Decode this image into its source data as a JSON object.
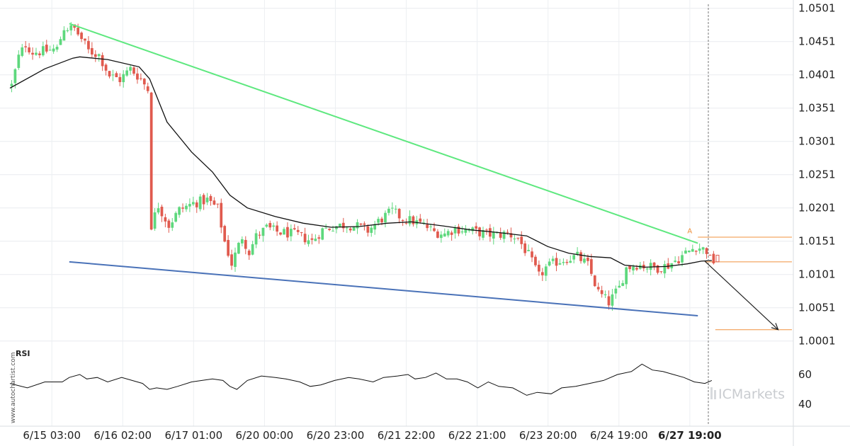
{
  "chart_data": {
    "type": "candlestick",
    "y_axis": {
      "range": [
        0.9976,
        1.0506
      ],
      "ticks": [
        "1.0501",
        "1.0451",
        "1.0401",
        "1.0351",
        "1.0301",
        "1.0251",
        "1.0201",
        "1.0151",
        "1.0101",
        "1.0051",
        "1.0001"
      ]
    },
    "x_axis": {
      "ticks": [
        "6/15 03:00",
        "6/16 02:00",
        "6/17 01:00",
        "6/20 00:00",
        "6/20 23:00",
        "6/21 22:00",
        "6/22 21:00",
        "6/23 20:00",
        "6/24 19:00",
        "6/27 19:00"
      ],
      "current_label": "6/27 19:00",
      "bar_count": 170
    },
    "price_path": [
      [
        0,
        1.0385
      ],
      [
        2,
        1.0428
      ],
      [
        4,
        1.0447
      ],
      [
        6,
        1.0435
      ],
      [
        10,
        1.0437
      ],
      [
        13,
        1.044
      ],
      [
        15,
        1.0472
      ],
      [
        18,
        1.047
      ],
      [
        20,
        1.0455
      ],
      [
        22,
        1.0437
      ],
      [
        25,
        1.0431
      ],
      [
        28,
        1.04
      ],
      [
        31,
        1.0394
      ],
      [
        34,
        1.041
      ],
      [
        37,
        1.0395
      ],
      [
        39,
        1.0379
      ],
      [
        40,
        1.0175
      ],
      [
        42,
        1.0205
      ],
      [
        45,
        1.0175
      ],
      [
        48,
        1.0198
      ],
      [
        52,
        1.0208
      ],
      [
        56,
        1.0213
      ],
      [
        59,
        1.02
      ],
      [
        61,
        1.015
      ],
      [
        63,
        1.0117
      ],
      [
        66,
        1.0158
      ],
      [
        68,
        1.0135
      ],
      [
        70,
        1.0158
      ],
      [
        73,
        1.0171
      ],
      [
        76,
        1.0165
      ],
      [
        79,
        1.0163
      ],
      [
        82,
        1.016
      ],
      [
        86,
        1.0151
      ],
      [
        89,
        1.0168
      ],
      [
        92,
        1.0173
      ],
      [
        96,
        1.0176
      ],
      [
        99,
        1.0173
      ],
      [
        102,
        1.0167
      ],
      [
        106,
        1.0185
      ],
      [
        109,
        1.0196
      ],
      [
        112,
        1.0185
      ],
      [
        115,
        1.0181
      ],
      [
        118,
        1.0175
      ],
      [
        121,
        1.0165
      ],
      [
        124,
        1.0162
      ],
      [
        127,
        1.017
      ],
      [
        130,
        1.0168
      ],
      [
        133,
        1.0165
      ],
      [
        136,
        1.0162
      ],
      [
        139,
        1.016
      ],
      [
        142,
        1.0163
      ],
      [
        145,
        1.0155
      ],
      [
        148,
        1.013
      ],
      [
        151,
        1.0098
      ],
      [
        153,
        1.0111
      ],
      [
        156,
        1.012
      ],
      [
        159,
        1.0125
      ],
      [
        162,
        1.0128
      ],
      [
        165,
        1.0115
      ],
      [
        168,
        1.0074
      ],
      [
        171,
        1.0059
      ],
      [
        174,
        1.0081
      ],
      [
        176,
        1.0111
      ],
      [
        179,
        1.0116
      ],
      [
        182,
        1.0113
      ],
      [
        185,
        1.0111
      ],
      [
        188,
        1.0115
      ],
      [
        191,
        1.0125
      ],
      [
        193,
        1.0133
      ],
      [
        196,
        1.0143
      ],
      [
        199,
        1.0137
      ],
      [
        200,
        1.0123
      ],
      [
        201,
        1.0121
      ]
    ],
    "ma_path": [
      [
        0,
        1.0381
      ],
      [
        10,
        1.041
      ],
      [
        18,
        1.0426
      ],
      [
        20,
        1.0428
      ],
      [
        28,
        1.0424
      ],
      [
        37,
        1.0413
      ],
      [
        40,
        1.0395
      ],
      [
        45,
        1.033
      ],
      [
        52,
        1.0285
      ],
      [
        58,
        1.0255
      ],
      [
        63,
        1.022
      ],
      [
        68,
        1.0201
      ],
      [
        76,
        1.0188
      ],
      [
        84,
        1.0178
      ],
      [
        92,
        1.0172
      ],
      [
        100,
        1.0173
      ],
      [
        108,
        1.0178
      ],
      [
        115,
        1.018
      ],
      [
        124,
        1.0174
      ],
      [
        132,
        1.0168
      ],
      [
        140,
        1.0164
      ],
      [
        148,
        1.0159
      ],
      [
        154,
        1.0143
      ],
      [
        160,
        1.0133
      ],
      [
        166,
        1.0128
      ],
      [
        172,
        1.0126
      ],
      [
        176,
        1.0115
      ],
      [
        182,
        1.0112
      ],
      [
        188,
        1.0113
      ],
      [
        194,
        1.0117
      ],
      [
        198,
        1.0121
      ],
      [
        201,
        1.0122
      ]
    ],
    "upper_trendline": {
      "from": [
        17,
        1.0478
      ],
      "to": [
        197,
        1.0148
      ]
    },
    "lower_trendline": {
      "from": [
        17,
        1.012
      ],
      "to": [
        197,
        1.0039
      ]
    },
    "resistance_level": 1.0157,
    "current_level": 1.012,
    "target_level": 1.0018,
    "pattern_marker": "A",
    "projection": {
      "from": [
        199,
        1.0121
      ],
      "to": [
        220,
        1.0018
      ]
    },
    "rsi": {
      "label": "RSI",
      "ticks": [
        "60",
        "40"
      ],
      "range": [
        30,
        75
      ],
      "path": [
        [
          0,
          54
        ],
        [
          5,
          51
        ],
        [
          10,
          55
        ],
        [
          15,
          55
        ],
        [
          17,
          58
        ],
        [
          20,
          60
        ],
        [
          22,
          57
        ],
        [
          25,
          58
        ],
        [
          28,
          55
        ],
        [
          32,
          58
        ],
        [
          35,
          56
        ],
        [
          38,
          54
        ],
        [
          40,
          50
        ],
        [
          42,
          51
        ],
        [
          45,
          50
        ],
        [
          48,
          52
        ],
        [
          52,
          55
        ],
        [
          55,
          56
        ],
        [
          58,
          57
        ],
        [
          61,
          56
        ],
        [
          63,
          52
        ],
        [
          65,
          50
        ],
        [
          68,
          56
        ],
        [
          72,
          59
        ],
        [
          76,
          58
        ],
        [
          79,
          57
        ],
        [
          83,
          55
        ],
        [
          86,
          52
        ],
        [
          89,
          53
        ],
        [
          93,
          56
        ],
        [
          97,
          58
        ],
        [
          100,
          57
        ],
        [
          104,
          55
        ],
        [
          107,
          58
        ],
        [
          111,
          59
        ],
        [
          114,
          60
        ],
        [
          116,
          57
        ],
        [
          119,
          58
        ],
        [
          122,
          61
        ],
        [
          125,
          57
        ],
        [
          128,
          57
        ],
        [
          131,
          55
        ],
        [
          134,
          51
        ],
        [
          137,
          55
        ],
        [
          140,
          52
        ],
        [
          144,
          51
        ],
        [
          148,
          46
        ],
        [
          151,
          48
        ],
        [
          155,
          47
        ],
        [
          158,
          51
        ],
        [
          162,
          52
        ],
        [
          166,
          54
        ],
        [
          170,
          56
        ],
        [
          174,
          60
        ],
        [
          178,
          62
        ],
        [
          181,
          67
        ],
        [
          184,
          63
        ],
        [
          187,
          62
        ],
        [
          190,
          60
        ],
        [
          193,
          58
        ],
        [
          196,
          55
        ],
        [
          199,
          54
        ],
        [
          201,
          56
        ]
      ]
    },
    "colors": {
      "up_candle": "#5ed87d",
      "down_candle": "#e05a4e",
      "upper_trendline": "#5ee87f",
      "lower_trendline": "#4a72b8",
      "level_line": "#f0913e",
      "moving_average": "#111111"
    }
  },
  "watermark_side": "www.autochartist.com",
  "watermark_brand": "ICMarkets"
}
